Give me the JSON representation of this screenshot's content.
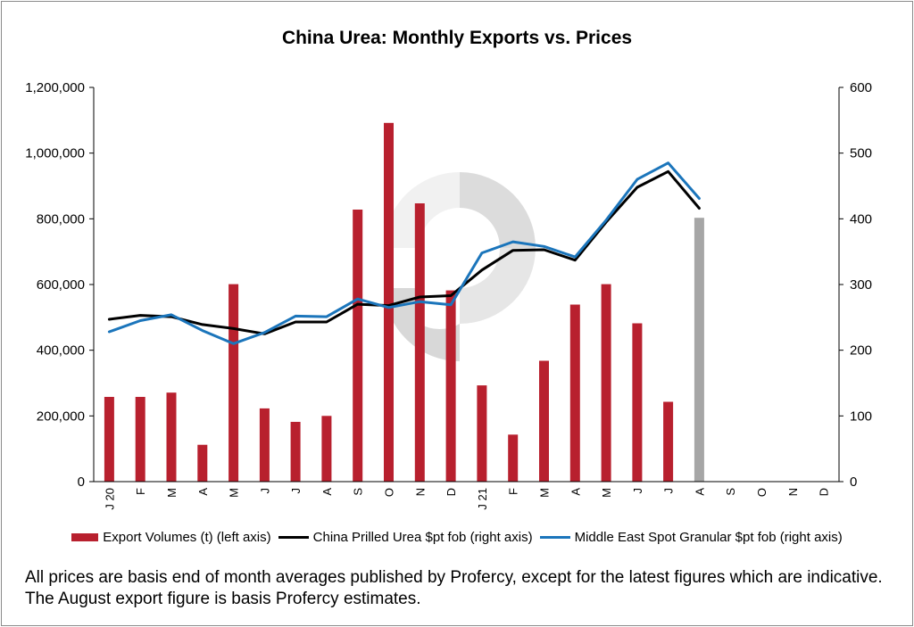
{
  "chart_data": {
    "type": "bar",
    "title": "China Urea: Monthly Exports vs. Prices",
    "categories": [
      "J 20",
      "F",
      "M",
      "A",
      "M",
      "J",
      "J",
      "A",
      "S",
      "O",
      "N",
      "D",
      "J 21",
      "F",
      "M",
      "A",
      "M",
      "J",
      "J",
      "A",
      "S",
      "O",
      "N",
      "D"
    ],
    "left_axis": {
      "ylim": [
        0,
        1200000
      ],
      "ticks": [
        "0",
        "200,000",
        "400,000",
        "600,000",
        "800,000",
        "1,000,000",
        "1,200,000"
      ]
    },
    "right_axis": {
      "ylim": [
        0,
        600
      ],
      "ticks": [
        "0",
        "100",
        "200",
        "300",
        "400",
        "500",
        "600"
      ]
    },
    "series": [
      {
        "name": "Export Volumes (t) (left axis)",
        "kind": "bar",
        "axis": "left",
        "color": "#b8202e",
        "values": [
          258000,
          258000,
          271000,
          112000,
          601000,
          223000,
          182000,
          200000,
          828000,
          1092000,
          847000,
          582000,
          293000,
          143000,
          368000,
          539000,
          601000,
          482000,
          243000,
          803000,
          null,
          null,
          null,
          null
        ],
        "estimated": [
          false,
          false,
          false,
          false,
          false,
          false,
          false,
          false,
          false,
          false,
          false,
          false,
          false,
          false,
          false,
          false,
          false,
          false,
          false,
          true,
          false,
          false,
          false,
          false
        ],
        "estimated_color": "#a6a6a6"
      },
      {
        "name": "China Prilled Urea $pt fob (right axis)",
        "kind": "line",
        "axis": "right",
        "color": "#000000",
        "values": [
          247,
          253,
          251,
          239,
          233,
          225,
          243,
          243,
          270,
          268,
          281,
          283,
          322,
          352,
          353,
          337,
          395,
          448,
          472,
          416,
          null,
          null,
          null,
          null
        ]
      },
      {
        "name": "Middle East Spot Granular $pt fob (right axis)",
        "kind": "line",
        "axis": "right",
        "color": "#1b75bb",
        "values": [
          228,
          245,
          254,
          230,
          210,
          227,
          252,
          251,
          278,
          265,
          274,
          269,
          348,
          365,
          358,
          342,
          398,
          460,
          485,
          431,
          null,
          null,
          null,
          null
        ]
      }
    ],
    "grid": false,
    "legend_position": "bottom"
  },
  "footnote": "All prices are basis end of month averages published by Profercy, except for the latest figures which are indicative. The August export figure is basis Profercy estimates."
}
